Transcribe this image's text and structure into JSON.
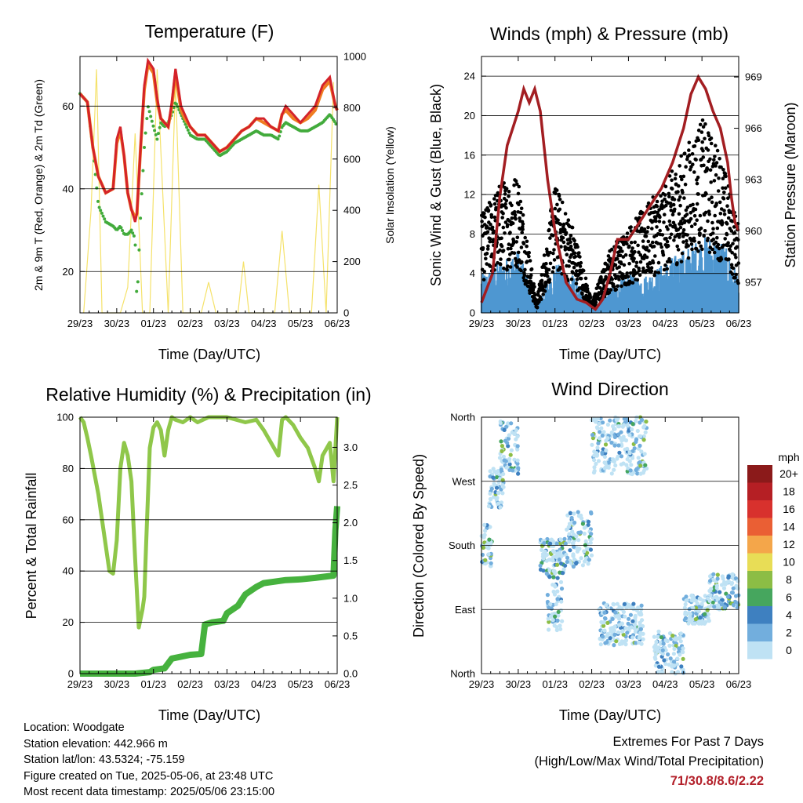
{
  "x_tick_labels": [
    "29/23",
    "30/23",
    "01/23",
    "02/23",
    "03/23",
    "04/23",
    "05/23",
    "06/23"
  ],
  "xlabel": "Time (Day/UTC)",
  "colors": {
    "temp_2m": "#d4232a",
    "temp_9m": "#f07c21",
    "dewpoint": "#42ab3c",
    "insolation": "#f5e26b",
    "gust": "#000000",
    "wind": "#4e97d1",
    "pressure": "#a31e22",
    "rh": "#8fc74a",
    "rain": "#46b23e",
    "extremes_values": "#b3202a"
  },
  "chart_data": [
    {
      "type": "line",
      "title": "Temperature (F)",
      "xlabel": "Time (Day/UTC)",
      "ylabel": "2m & 9m T (Red, Orange) & 2m Td (Green)",
      "ylabel_right": "Solar Insolation (Yellow)",
      "ylim": [
        10,
        72
      ],
      "yticks": [
        20,
        40,
        60
      ],
      "ylim_right": [
        0,
        1000
      ],
      "yticks_right": [
        0,
        200,
        400,
        600,
        800,
        1000
      ],
      "x": [
        0,
        0.2,
        0.35,
        0.5,
        0.7,
        0.9,
        1.0,
        1.1,
        1.2,
        1.3,
        1.4,
        1.5,
        1.55,
        1.65,
        1.75,
        1.85,
        2.0,
        2.1,
        2.2,
        2.3,
        2.4,
        2.5,
        2.6,
        2.75,
        2.85,
        3.0,
        3.2,
        3.4,
        3.6,
        3.8,
        4.0,
        4.2,
        4.4,
        4.6,
        4.8,
        5.0,
        5.2,
        5.4,
        5.5,
        5.6,
        5.8,
        6.0,
        6.2,
        6.4,
        6.6,
        6.8,
        6.95,
        7.0
      ],
      "series": [
        {
          "name": "2m T",
          "values": [
            63,
            61,
            50,
            43,
            39,
            40,
            52,
            55,
            48,
            39,
            35,
            32,
            34,
            50,
            65,
            71,
            69,
            62,
            57,
            56,
            55,
            61,
            69,
            60,
            58,
            55,
            53,
            53,
            51,
            49,
            50,
            52,
            54,
            55,
            57,
            57,
            55,
            54,
            58,
            60,
            58,
            56,
            58,
            60,
            65,
            67,
            60,
            59
          ]
        },
        {
          "name": "9m T",
          "values": [
            63,
            61,
            50,
            43,
            39,
            40,
            51,
            54,
            48,
            39,
            35,
            33,
            34,
            50,
            64,
            70,
            68,
            61,
            57,
            56,
            55,
            60,
            68,
            59,
            57,
            55,
            53,
            53,
            51,
            49,
            50,
            52,
            54,
            55,
            57,
            56,
            55,
            54,
            58,
            59,
            57,
            56,
            57,
            59,
            64,
            66,
            60,
            59
          ]
        },
        {
          "name": "2m Td",
          "values": [
            63,
            61,
            50,
            36,
            32,
            31,
            30,
            31,
            29,
            29,
            30,
            28,
            12,
            34,
            50,
            60,
            55,
            52,
            56,
            55,
            56,
            58,
            61,
            58,
            56,
            53,
            52,
            52,
            50,
            48,
            49,
            51,
            52,
            53,
            54,
            53,
            53,
            52,
            55,
            56,
            55,
            54,
            54,
            55,
            56,
            58,
            56,
            55
          ]
        }
      ],
      "insolation": {
        "x": [
          0.1,
          0.3,
          0.45,
          0.6,
          1.1,
          1.3,
          1.5,
          1.7,
          1.9,
          2.1,
          2.4,
          2.6,
          2.8,
          3.3,
          3.5,
          3.7,
          4.3,
          4.45,
          4.6,
          5.3,
          5.5,
          5.7,
          6.3,
          6.5,
          6.7,
          6.9
        ],
        "values": [
          0,
          400,
          950,
          0,
          0,
          100,
          700,
          0,
          0,
          950,
          0,
          900,
          0,
          0,
          120,
          0,
          0,
          200,
          0,
          0,
          320,
          0,
          0,
          500,
          0,
          900
        ]
      }
    },
    {
      "type": "scatter",
      "title": "Winds (mph) & Pressure (mb)",
      "xlabel": "Time (Day/UTC)",
      "ylabel": "Sonic Wind & Gust (Blue, Black)",
      "ylabel_right": "Station Pressure (Maroon)",
      "ylim": [
        0,
        26
      ],
      "yticks": [
        0,
        4,
        8,
        12,
        16,
        20,
        24
      ],
      "ylim_right": [
        955.2,
        970.2
      ],
      "yticks_right": [
        957,
        960,
        963,
        966,
        969
      ],
      "gust_envelope": {
        "x": [
          0,
          0.5,
          1.0,
          1.5,
          2.0,
          2.5,
          3.0,
          3.5,
          4.0,
          4.5,
          5.0,
          5.5,
          6.0,
          6.5,
          7.0
        ],
        "values": [
          9,
          12,
          13,
          1,
          12,
          8,
          1,
          6,
          8,
          10,
          12,
          15,
          18,
          15,
          8
        ]
      },
      "wind_envelope": {
        "x": [
          0,
          0.5,
          1.0,
          1.5,
          2.0,
          2.5,
          3.0,
          3.5,
          4.0,
          4.5,
          5.0,
          5.5,
          6.0,
          6.5,
          7.0
        ],
        "values": [
          3,
          4,
          5,
          0.5,
          4,
          3,
          0.5,
          2,
          3,
          3,
          4,
          5,
          6,
          6,
          3
        ]
      },
      "pressure": {
        "x": [
          0,
          0.3,
          0.5,
          0.7,
          1.0,
          1.15,
          1.3,
          1.45,
          1.6,
          1.8,
          2.0,
          2.3,
          2.6,
          2.85,
          3.1,
          3.3,
          3.5,
          3.7,
          4.0,
          4.3,
          4.6,
          4.9,
          5.2,
          5.5,
          5.7,
          5.9,
          6.1,
          6.3,
          6.5,
          6.7,
          6.8,
          6.9,
          7.0
        ],
        "values": [
          955.8,
          957.5,
          962.0,
          965.0,
          967.0,
          968.3,
          967.5,
          968.3,
          967.0,
          963.0,
          960.0,
          957.0,
          956.0,
          955.8,
          955.4,
          956.0,
          957.5,
          959.5,
          959.5,
          960.5,
          961.5,
          962.5,
          964.0,
          966.0,
          968.0,
          969.0,
          968.3,
          967.0,
          966.0,
          964.0,
          962.0,
          960.5,
          960.0
        ]
      }
    },
    {
      "type": "line",
      "title": "Relative Humidity (%) & Precipitation (in)",
      "xlabel": "Time (Day/UTC)",
      "ylabel": "Percent & Total Rainfall",
      "ylim": [
        0,
        100
      ],
      "yticks": [
        0,
        20,
        40,
        60,
        80,
        100
      ],
      "ylim_right": [
        0,
        3.4
      ],
      "yticks_right": [
        0.0,
        0.5,
        1.0,
        1.5,
        2.0,
        2.5,
        3.0
      ],
      "series": [
        {
          "name": "RH",
          "x": [
            0,
            0.1,
            0.2,
            0.3,
            0.5,
            0.7,
            0.8,
            0.9,
            1.0,
            1.1,
            1.2,
            1.3,
            1.4,
            1.5,
            1.6,
            1.7,
            1.75,
            1.8,
            1.9,
            2.0,
            2.1,
            2.2,
            2.3,
            2.4,
            2.5,
            2.6,
            2.8,
            3.0,
            3.2,
            3.5,
            4.0,
            4.5,
            4.8,
            5.0,
            5.2,
            5.4,
            5.5,
            5.6,
            5.8,
            6.0,
            6.2,
            6.4,
            6.5,
            6.6,
            6.8,
            6.9,
            7.0
          ],
          "values": [
            100,
            98,
            92,
            85,
            70,
            50,
            40,
            39,
            52,
            80,
            90,
            85,
            75,
            45,
            18,
            25,
            30,
            50,
            88,
            96,
            98,
            95,
            85,
            95,
            100,
            99,
            98,
            100,
            98,
            100,
            100,
            98,
            99,
            95,
            90,
            85,
            99,
            100,
            97,
            92,
            88,
            80,
            75,
            85,
            90,
            75,
            100
          ]
        },
        {
          "name": "Total Rainfall",
          "x": [
            0,
            1.5,
            1.9,
            2.0,
            2.3,
            2.5,
            3.0,
            3.3,
            3.4,
            3.6,
            3.9,
            4.0,
            4.3,
            4.5,
            4.8,
            5.0,
            5.3,
            5.6,
            6.0,
            6.4,
            6.9,
            6.95,
            7.0
          ],
          "values": [
            0.0,
            0.0,
            0.02,
            0.05,
            0.07,
            0.2,
            0.25,
            0.26,
            0.65,
            0.68,
            0.7,
            0.8,
            0.9,
            1.05,
            1.15,
            1.2,
            1.22,
            1.24,
            1.25,
            1.27,
            1.3,
            1.9,
            2.22
          ]
        }
      ]
    },
    {
      "type": "scatter",
      "title": "Wind Direction",
      "xlabel": "Time (Day/UTC)",
      "ylabel": "Direction (Colored By Speed)",
      "y_tick_labels": [
        "North",
        "East",
        "South",
        "West",
        "North"
      ],
      "ylim": [
        0,
        360
      ],
      "colorbar": {
        "title": "mph",
        "labels": [
          "20+",
          "18",
          "16",
          "14",
          "12",
          "10",
          "8",
          "6",
          "4",
          "2",
          "0"
        ],
        "colors": [
          "#8b1a1a",
          "#b51f24",
          "#d8312d",
          "#ea5f34",
          "#f4a64a",
          "#e8dd56",
          "#8cbd45",
          "#46a65e",
          "#3e80c0",
          "#72aedd",
          "#bfe2f4"
        ]
      },
      "direction_clusters": [
        {
          "x": [
            0.0,
            0.3
          ],
          "dir": [
            150,
            210
          ]
        },
        {
          "x": [
            0.2,
            0.6
          ],
          "dir": [
            230,
            290
          ]
        },
        {
          "x": [
            0.5,
            1.0
          ],
          "dir": [
            280,
            355
          ]
        },
        {
          "x": [
            1.6,
            2.3
          ],
          "dir": [
            140,
            190
          ]
        },
        {
          "x": [
            1.8,
            2.2
          ],
          "dir": [
            60,
            140
          ]
        },
        {
          "x": [
            2.3,
            3.0
          ],
          "dir": [
            150,
            230
          ]
        },
        {
          "x": [
            3.0,
            4.5
          ],
          "dir": [
            280,
            360
          ]
        },
        {
          "x": [
            3.2,
            4.4
          ],
          "dir": [
            40,
            100
          ]
        },
        {
          "x": [
            4.7,
            5.5
          ],
          "dir": [
            0,
            60
          ]
        },
        {
          "x": [
            5.5,
            6.2
          ],
          "dir": [
            70,
            110
          ]
        },
        {
          "x": [
            6.2,
            7.0
          ],
          "dir": [
            90,
            140
          ]
        }
      ]
    }
  ],
  "info": {
    "location": "Location: Woodgate",
    "elevation": "Station elevation: 442.966 m",
    "latlon": "Station lat/lon: 43.5324; -75.159",
    "created": "Figure created on Tue, 2025-05-06, at 23:48 UTC",
    "recent": "Most recent data timestamp: 2025/05/06 23:15:00"
  },
  "extremes": {
    "title": "Extremes For Past 7 Days",
    "subtitle": "(High/Low/Max Wind/Total Precipitation)",
    "values": "71/30.8/8.6/2.22"
  }
}
